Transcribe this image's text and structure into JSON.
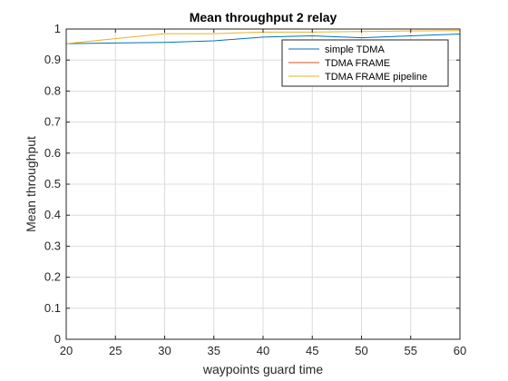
{
  "chart_data": {
    "type": "line",
    "title": "Mean throughput 2 relay",
    "xlabel": "waypoints guard time",
    "ylabel": "Mean throughput",
    "xlim": [
      20,
      60
    ],
    "ylim": [
      0,
      1
    ],
    "x_ticks": [
      20,
      25,
      30,
      35,
      40,
      45,
      50,
      55,
      60
    ],
    "y_ticks": [
      0,
      0.1,
      0.2,
      0.3,
      0.4,
      0.5,
      0.6,
      0.7,
      0.8,
      0.9,
      1
    ],
    "y_tick_labels": [
      "0",
      "0.1",
      "0.2",
      "0.3",
      "0.4",
      "0.5",
      "0.6",
      "0.7",
      "0.8",
      "0.9",
      "1"
    ],
    "grid": true,
    "legend_position": "top-right",
    "x": [
      20,
      30,
      35,
      40,
      45,
      50,
      55,
      60
    ],
    "series": [
      {
        "name": "simple TDMA",
        "color": "#0072BD",
        "values": [
          0.953,
          0.957,
          0.962,
          0.974,
          0.978,
          0.972,
          0.978,
          0.984
        ]
      },
      {
        "name": "TDMA FRAME",
        "color": "#D95319",
        "values": [
          1.0,
          1.0,
          1.0,
          1.0,
          1.0,
          1.0,
          1.0,
          1.0
        ]
      },
      {
        "name": "TDMA FRAME pipeline",
        "color": "#EDB120",
        "values": [
          0.953,
          0.985,
          0.985,
          0.99,
          0.99,
          0.992,
          0.994,
          0.995
        ]
      }
    ]
  }
}
